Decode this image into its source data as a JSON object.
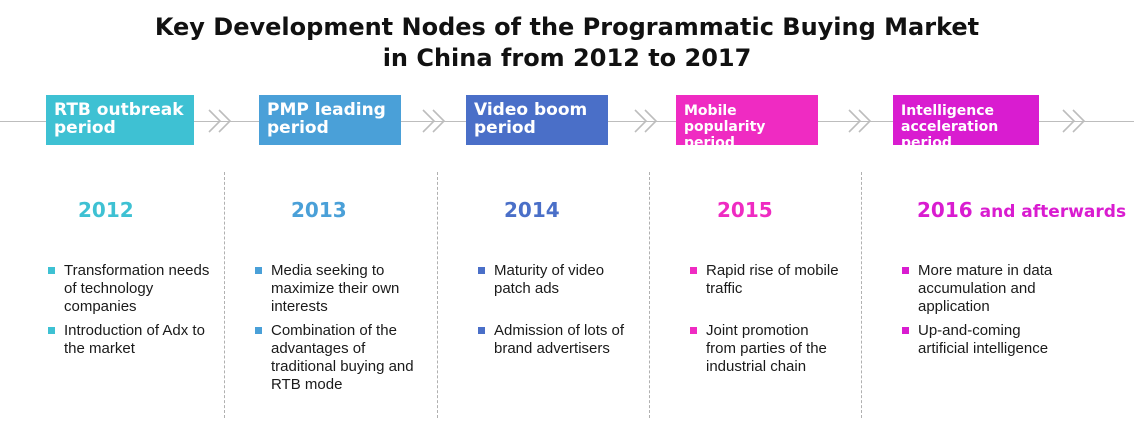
{
  "title": {
    "line1": "Key Development Nodes of the Programmatic Buying Market",
    "line2": "in China from 2012 to 2017"
  },
  "colors": {
    "teal": "#3ec1d3",
    "blue": "#4aa0d8",
    "indigo": "#4a6fc8",
    "magenta": "#ef2bc2",
    "purple": "#d91cd0",
    "chevron": "#bdbdbd",
    "divider": "#b0b0b0"
  },
  "icons": {
    "chevron": "double-chevron-right-icon",
    "bullet": "square-bullet-icon"
  },
  "phases": [
    {
      "label_line1": "RTB outbreak",
      "label_line2": "period",
      "color": "#3ec1d3",
      "year": "2012",
      "year_suffix": "",
      "items": [
        {
          "l1": "Transformation needs",
          "l2": "of technology",
          "l3": "companies"
        },
        {
          "l1": "Introduction of Adx to",
          "l2": "the market",
          "l3": ""
        }
      ]
    },
    {
      "label_line1": "PMP leading",
      "label_line2": "period",
      "color": "#4aa0d8",
      "year": "2013",
      "year_suffix": "",
      "items": [
        {
          "l1": "Media seeking to",
          "l2": "maximize their own",
          "l3": "interests",
          "l4": ""
        },
        {
          "l1": "Combination of the",
          "l2": "advantages of",
          "l3": "traditional buying and",
          "l4": "RTB mode"
        }
      ]
    },
    {
      "label_line1": "Video boom",
      "label_line2": "period",
      "color": "#4a6fc8",
      "year": "2014",
      "year_suffix": "",
      "items": [
        {
          "l1": "Maturity of video",
          "l2": "patch ads"
        },
        {
          "l1": "Admission of lots of",
          "l2": "brand advertisers"
        }
      ]
    },
    {
      "label_line1": "Mobile",
      "label_line2": "popularity period",
      "color": "#ef2bc2",
      "year": "2015",
      "year_suffix": "",
      "items": [
        {
          "l1": "Rapid rise of mobile",
          "l2": "traffic",
          "l3": ""
        },
        {
          "l1": "Joint promotion",
          "l2": "from parties of the",
          "l3": "industrial chain"
        }
      ]
    },
    {
      "label_line1": "Intelligence",
      "label_line2": "acceleration period",
      "color": "#d91cd0",
      "year": "2016",
      "year_suffix": "and afterwards",
      "items": [
        {
          "l1": "More mature in data",
          "l2": "accumulation and",
          "l3": "application"
        },
        {
          "l1": "Up-and-coming",
          "l2": "artificial intelligence",
          "l3": ""
        }
      ]
    }
  ]
}
